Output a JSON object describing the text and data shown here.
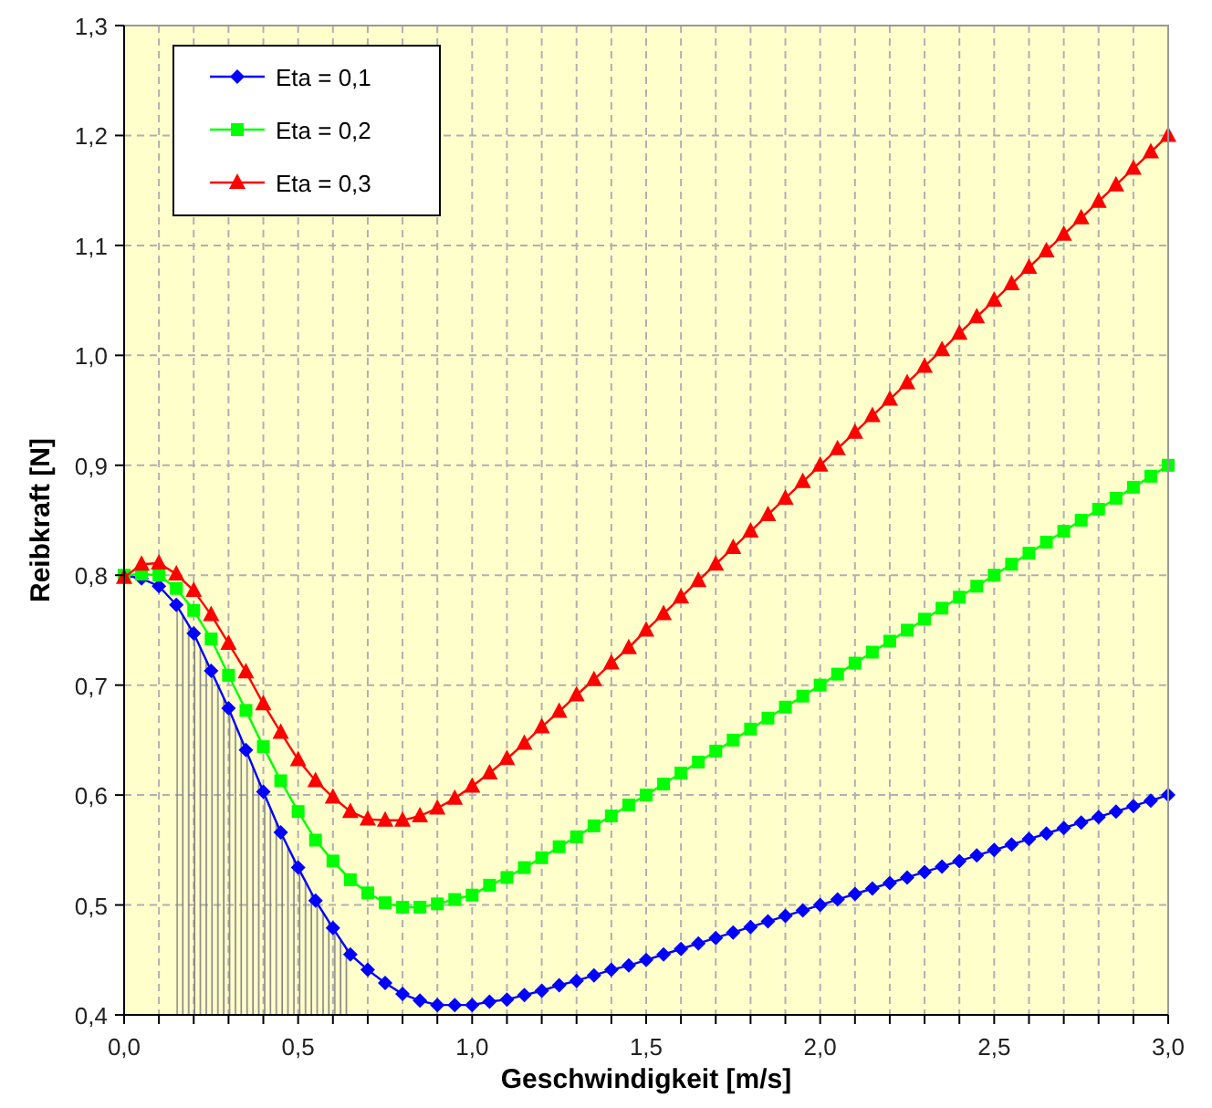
{
  "chart_data": {
    "type": "line",
    "xlabel": "Geschwindigkeit [m/s]",
    "ylabel": "Reibkraft [N]",
    "x": [
      0,
      0.05,
      0.1,
      0.15,
      0.2,
      0.25,
      0.3,
      0.35,
      0.4,
      0.45,
      0.5,
      0.55,
      0.6,
      0.65,
      0.7,
      0.75,
      0.8,
      0.85,
      0.9,
      0.95,
      1,
      1.05,
      1.1,
      1.15,
      1.2,
      1.25,
      1.3,
      1.35,
      1.4,
      1.45,
      1.5,
      1.55,
      1.6,
      1.65,
      1.7,
      1.75,
      1.8,
      1.85,
      1.9,
      1.95,
      2,
      2.05,
      2.1,
      2.15,
      2.2,
      2.25,
      2.3,
      2.35,
      2.4,
      2.45,
      2.5,
      2.55,
      2.6,
      2.65,
      2.7,
      2.75,
      2.8,
      2.85,
      2.9,
      2.95,
      3
    ],
    "series": [
      {
        "name": "Eta = 0,1",
        "color": "#0000ff",
        "marker": "diamond",
        "values": [
          0.8,
          0.797,
          0.79,
          0.773,
          0.747,
          0.713,
          0.679,
          0.641,
          0.603,
          0.566,
          0.534,
          0.504,
          0.479,
          0.455,
          0.441,
          0.429,
          0.419,
          0.413,
          0.409,
          0.409,
          0.409,
          0.412,
          0.414,
          0.418,
          0.422,
          0.427,
          0.431,
          0.436,
          0.441,
          0.445,
          0.45,
          0.455,
          0.46,
          0.465,
          0.47,
          0.475,
          0.48,
          0.485,
          0.49,
          0.495,
          0.5,
          0.505,
          0.51,
          0.515,
          0.52,
          0.525,
          0.53,
          0.535,
          0.54,
          0.545,
          0.55,
          0.555,
          0.56,
          0.565,
          0.57,
          0.575,
          0.58,
          0.585,
          0.59,
          0.595,
          0.6
        ]
      },
      {
        "name": "Eta = 0,2",
        "color": "#00ff00",
        "marker": "square",
        "values": [
          0.8,
          0.801,
          0.8,
          0.788,
          0.768,
          0.742,
          0.709,
          0.677,
          0.644,
          0.613,
          0.585,
          0.559,
          0.54,
          0.523,
          0.511,
          0.502,
          0.498,
          0.498,
          0.501,
          0.505,
          0.509,
          0.518,
          0.525,
          0.534,
          0.543,
          0.553,
          0.562,
          0.572,
          0.581,
          0.591,
          0.6,
          0.61,
          0.62,
          0.63,
          0.64,
          0.65,
          0.66,
          0.67,
          0.68,
          0.69,
          0.7,
          0.71,
          0.72,
          0.73,
          0.74,
          0.75,
          0.76,
          0.77,
          0.78,
          0.79,
          0.8,
          0.81,
          0.82,
          0.83,
          0.84,
          0.85,
          0.86,
          0.87,
          0.88,
          0.89,
          0.9
        ]
      },
      {
        "name": "Eta = 0,3",
        "color": "#ff0000",
        "marker": "triangle",
        "values": [
          0.798,
          0.81,
          0.811,
          0.801,
          0.786,
          0.764,
          0.738,
          0.712,
          0.683,
          0.657,
          0.632,
          0.613,
          0.598,
          0.585,
          0.578,
          0.577,
          0.577,
          0.581,
          0.588,
          0.597,
          0.608,
          0.62,
          0.633,
          0.647,
          0.662,
          0.676,
          0.691,
          0.705,
          0.72,
          0.734,
          0.75,
          0.765,
          0.78,
          0.795,
          0.81,
          0.825,
          0.84,
          0.855,
          0.87,
          0.885,
          0.9,
          0.915,
          0.93,
          0.945,
          0.96,
          0.975,
          0.99,
          1.005,
          1.02,
          1.035,
          1.05,
          1.065,
          1.08,
          1.095,
          1.11,
          1.125,
          1.14,
          1.155,
          1.17,
          1.185,
          1.2
        ]
      },
      {
        "type": "area",
        "color": "#808080",
        "x": [
          0.15,
          0.2,
          0.25,
          0.3,
          0.35,
          0.4,
          0.45,
          0.5,
          0.55,
          0.6,
          0.65
        ],
        "values": [
          0.773,
          0.747,
          0.713,
          0.679,
          0.641,
          0.603,
          0.566,
          0.534,
          0.504,
          0.479,
          0.455
        ]
      }
    ],
    "xlim": [
      0,
      3
    ],
    "xticks": [
      {
        "value": 0,
        "label": "0,0"
      },
      {
        "value": 0.1,
        "label": null
      },
      {
        "value": 0.2,
        "label": null
      },
      {
        "value": 0.3,
        "label": null
      },
      {
        "value": 0.4,
        "label": null
      },
      {
        "value": 0.5,
        "label": "0,5"
      },
      {
        "value": 0.6,
        "label": null
      },
      {
        "value": 0.7,
        "label": null
      },
      {
        "value": 0.8,
        "label": null
      },
      {
        "value": 0.9,
        "label": null
      },
      {
        "value": 1,
        "label": "1,0"
      },
      {
        "value": 1.1,
        "label": null
      },
      {
        "value": 1.2,
        "label": null
      },
      {
        "value": 1.3,
        "label": null
      },
      {
        "value": 1.4,
        "label": null
      },
      {
        "value": 1.5,
        "label": "1,5"
      },
      {
        "value": 1.6,
        "label": null
      },
      {
        "value": 1.7,
        "label": null
      },
      {
        "value": 1.8,
        "label": null
      },
      {
        "value": 1.9,
        "label": null
      },
      {
        "value": 2,
        "label": "2,0"
      },
      {
        "value": 2.1,
        "label": null
      },
      {
        "value": 2.2,
        "label": null
      },
      {
        "value": 2.3,
        "label": null
      },
      {
        "value": 2.4,
        "label": null
      },
      {
        "value": 2.5,
        "label": "2,5"
      },
      {
        "value": 2.6,
        "label": null
      },
      {
        "value": 2.7,
        "label": null
      },
      {
        "value": 2.8,
        "label": null
      },
      {
        "value": 2.9,
        "label": null
      },
      {
        "value": 3,
        "label": "3,0"
      }
    ],
    "ylim": [
      0.4,
      1.3
    ],
    "yticks": [
      {
        "value": 0.4,
        "label": "0,4"
      },
      {
        "value": 0.5,
        "label": "0,5"
      },
      {
        "value": 0.6,
        "label": "0,6"
      },
      {
        "value": 0.7,
        "label": "0,7"
      },
      {
        "value": 0.8,
        "label": "0,8"
      },
      {
        "value": 0.9,
        "label": "0,9"
      },
      {
        "value": 1,
        "label": "1,0"
      },
      {
        "value": 1.1,
        "label": "1,1"
      },
      {
        "value": 1.2,
        "label": "1,2"
      },
      {
        "value": 1.3,
        "label": "1,3"
      }
    ],
    "grid": true,
    "legend": "top left",
    "line_style": "solid"
  }
}
